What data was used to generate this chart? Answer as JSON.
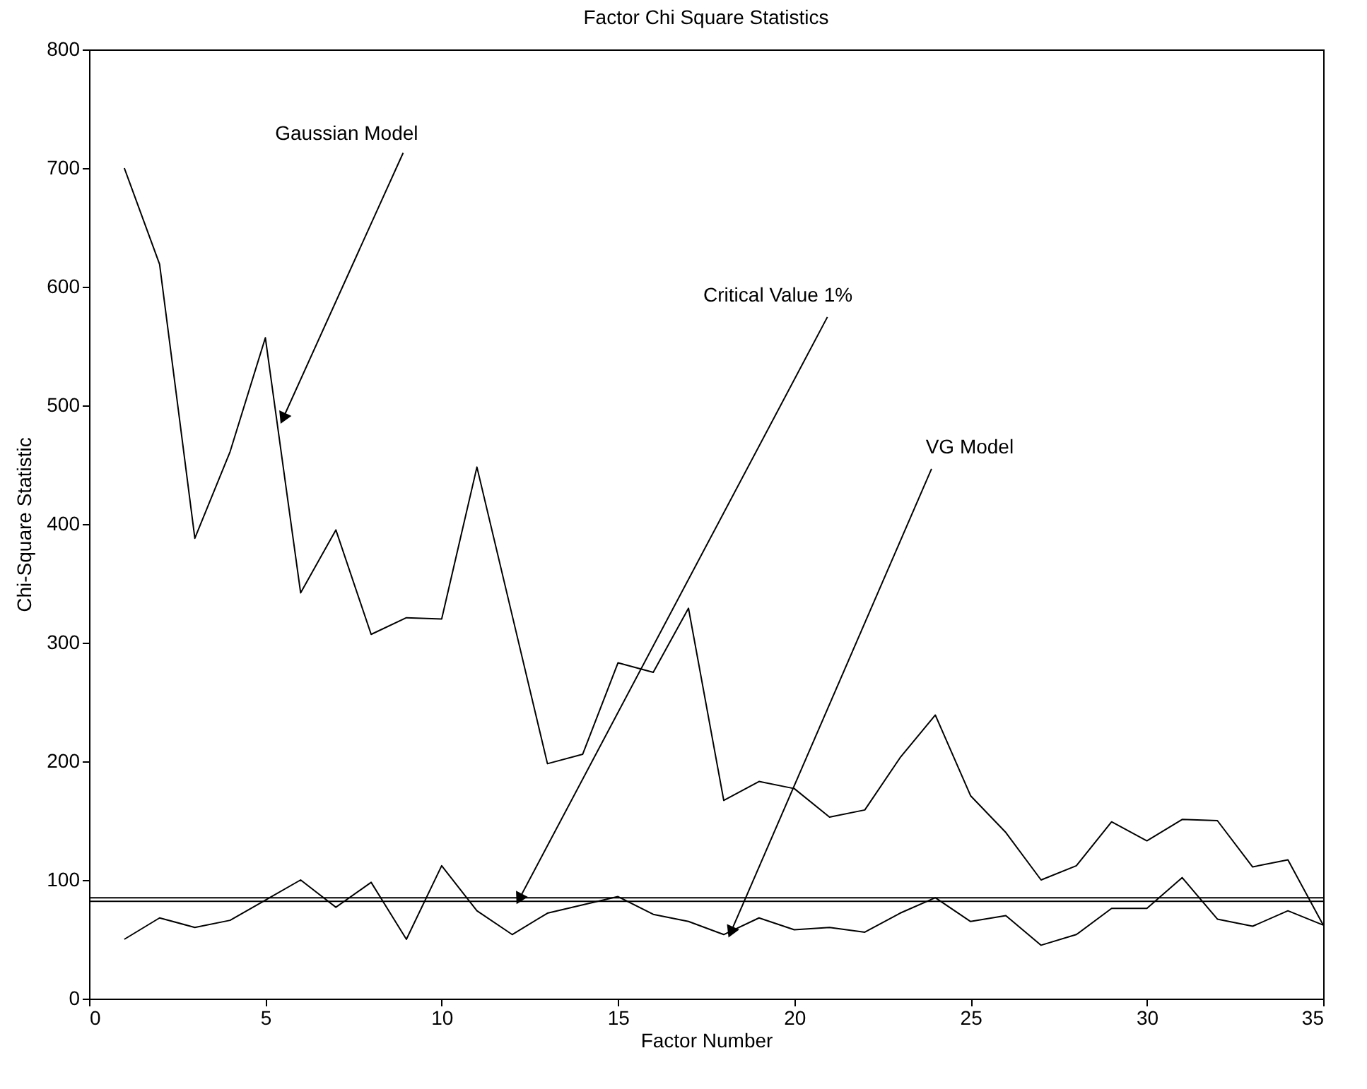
{
  "chart_data": {
    "type": "line",
    "title": "Factor Chi Square Statistics",
    "xlabel": "Factor Number",
    "ylabel": "Chi-Square Statistic",
    "x": [
      1,
      2,
      3,
      4,
      5,
      6,
      7,
      8,
      9,
      10,
      11,
      12,
      13,
      14,
      15,
      16,
      17,
      18,
      19,
      20,
      21,
      22,
      23,
      24,
      25,
      26,
      27,
      28,
      29,
      30,
      31,
      32,
      33,
      34,
      35
    ],
    "series": [
      {
        "color": "#000000",
        "values": [
          700,
          619,
          388,
          461,
          557,
          342,
          395,
          307,
          321,
          320,
          448,
          323,
          198,
          206,
          283,
          275,
          329,
          167,
          183,
          177,
          153,
          159,
          203,
          239,
          171,
          140,
          100,
          112,
          149,
          133,
          151,
          150,
          111,
          117,
          62
        ]
      },
      {
        "color": "#000000",
        "values": [
          50,
          68,
          60,
          66,
          83,
          100,
          77,
          98,
          50,
          112,
          74,
          54,
          72,
          79,
          86,
          71,
          65,
          54,
          68,
          58,
          60,
          56,
          72,
          85,
          65,
          70,
          45,
          54,
          76,
          76,
          102,
          67,
          61,
          74,
          62
        ]
      }
    ],
    "ref_lines": [
      {
        "axis": "y",
        "value": 85,
        "color": "#000000"
      },
      {
        "axis": "y",
        "value": 82,
        "color": "#000000"
      }
    ],
    "annotations": [
      {
        "text": "Gaussian Model",
        "x": 5.5,
        "y": 489
      },
      {
        "text": "Critical Value 1%",
        "x": 12.2,
        "y": 84
      },
      {
        "text": "VG Model",
        "x": 18.2,
        "y": 56
      }
    ],
    "xlim": [
      0,
      35
    ],
    "xticks": [
      0,
      5,
      10,
      15,
      20,
      25,
      30,
      35
    ],
    "ylim": [
      0,
      800
    ],
    "yticks": [
      0,
      100,
      200,
      300,
      400,
      500,
      600,
      700,
      800
    ],
    "grid": false,
    "legend": false
  }
}
